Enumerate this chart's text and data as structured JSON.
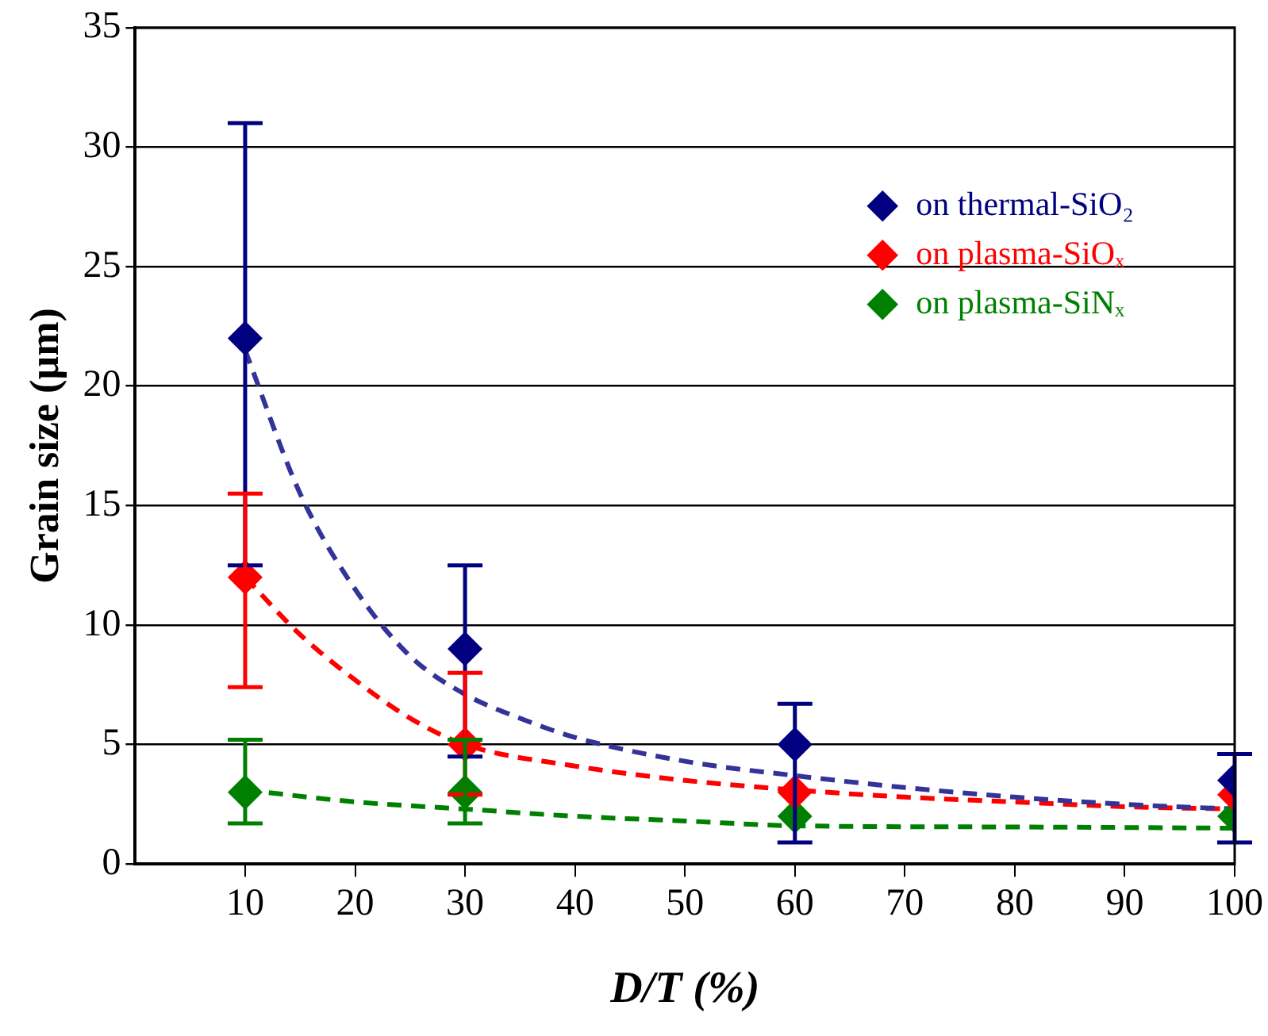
{
  "chart_data": {
    "type": "scatter",
    "xlabel": "D/T (%)",
    "ylabel": "Grain size (µm)",
    "xlim": [
      0,
      100
    ],
    "xticks": [
      10,
      20,
      30,
      40,
      50,
      60,
      70,
      80,
      90,
      100
    ],
    "ylim": [
      0,
      35
    ],
    "yticks": [
      0,
      5,
      10,
      15,
      20,
      25,
      30,
      35
    ],
    "grid": "y",
    "legend": "top right",
    "marker": "diamond",
    "series": [
      {
        "name": "on thermal-SiO₂",
        "type": "scatter",
        "color": "#000080",
        "x": [
          10,
          30,
          60,
          100
        ],
        "values": [
          22,
          9,
          5,
          3.5
        ],
        "errors": [
          [
            12.5,
            31
          ],
          [
            4.5,
            12.5
          ],
          [
            0.9,
            6.7
          ],
          [
            0.9,
            4.6
          ]
        ]
      },
      {
        "name": "on plasma-SiOₓ",
        "type": "scatter",
        "color": "#ff0000",
        "x": [
          10,
          30,
          60,
          100
        ],
        "values": [
          12,
          5,
          3,
          2.9
        ],
        "errors": [
          [
            7.4,
            15.5
          ],
          [
            2.9,
            8
          ],
          null,
          null
        ]
      },
      {
        "name": "on plasma-SiNₓ",
        "type": "scatter",
        "color": "#008000",
        "x": [
          10,
          30,
          60,
          100
        ],
        "values": [
          3,
          3,
          2,
          2
        ],
        "errors": [
          [
            1.7,
            5.2
          ],
          [
            1.7,
            5.2
          ],
          null,
          null
        ]
      },
      {
        "type": "line",
        "color": "#333399",
        "line_style": "dashed",
        "marker": "none",
        "x": [
          10,
          15,
          20,
          25,
          30,
          35,
          40,
          50,
          60,
          70,
          80,
          90,
          100
        ],
        "values": [
          21.5,
          15.5,
          11.5,
          8.7,
          7.1,
          6.1,
          5.3,
          4.3,
          3.7,
          3.2,
          2.8,
          2.5,
          2.3
        ]
      },
      {
        "type": "line",
        "color": "#ff0000",
        "line_style": "dashed",
        "marker": "none",
        "x": [
          10,
          15,
          20,
          25,
          30,
          40,
          50,
          60,
          70,
          80,
          90,
          100
        ],
        "values": [
          12,
          9.6,
          7.7,
          6.1,
          5,
          4.1,
          3.5,
          3.1,
          2.8,
          2.6,
          2.4,
          2.3
        ]
      },
      {
        "type": "line",
        "color": "#008000",
        "line_style": "dashed",
        "marker": "none",
        "x": [
          10,
          20,
          30,
          40,
          50,
          60,
          80,
          100
        ],
        "values": [
          3.1,
          2.6,
          2.3,
          2.0,
          1.8,
          1.6,
          1.55,
          1.5
        ]
      }
    ]
  }
}
